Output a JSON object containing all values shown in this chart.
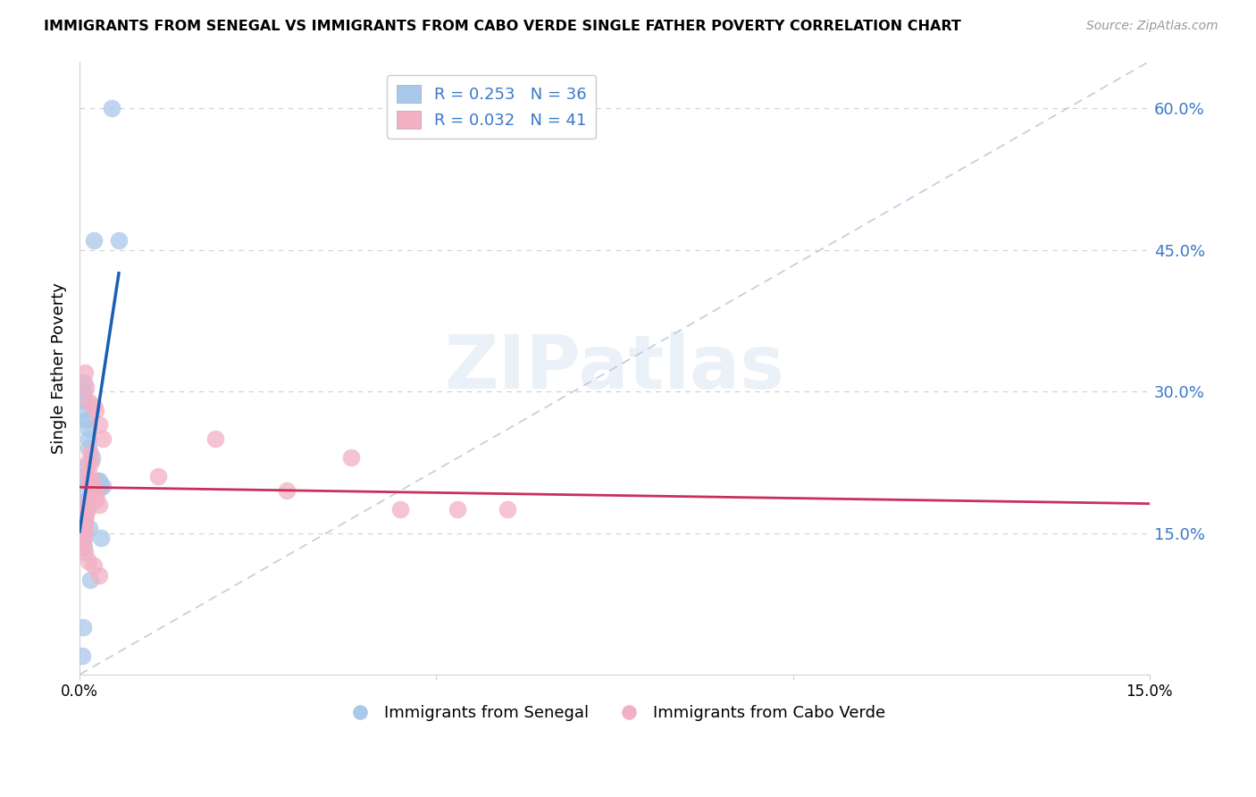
{
  "title": "IMMIGRANTS FROM SENEGAL VS IMMIGRANTS FROM CABO VERDE SINGLE FATHER POVERTY CORRELATION CHART",
  "source": "Source: ZipAtlas.com",
  "ylabel": "Single Father Poverty",
  "right_ytick_labels": [
    "15.0%",
    "30.0%",
    "45.0%",
    "60.0%"
  ],
  "right_ytick_vals": [
    0.15,
    0.3,
    0.45,
    0.6
  ],
  "xlim": [
    0.0,
    0.15
  ],
  "ylim": [
    0.0,
    0.65
  ],
  "legend_blue_R": "0.253",
  "legend_blue_N": "36",
  "legend_pink_R": "0.032",
  "legend_pink_N": "41",
  "blue_color": "#aac8ea",
  "pink_color": "#f2b0c4",
  "blue_line_color": "#1a5fb4",
  "pink_line_color": "#c8305a",
  "watermark_text": "ZIPatlas",
  "senegal_x": [
    0.0045,
    0.002,
    0.0055,
    0.0006,
    0.0006,
    0.0007,
    0.0008,
    0.0009,
    0.001,
    0.0012,
    0.0012,
    0.0013,
    0.0018,
    0.0006,
    0.0007,
    0.0009,
    0.001,
    0.0013,
    0.0025,
    0.0028,
    0.003,
    0.0032,
    0.0022,
    0.0009,
    0.001,
    0.0007,
    0.0008,
    0.0006,
    0.0007,
    0.0014,
    0.003,
    0.0006,
    0.0006,
    0.0015,
    0.0005,
    0.0004
  ],
  "senegal_y": [
    0.6,
    0.46,
    0.46,
    0.31,
    0.3,
    0.29,
    0.28,
    0.27,
    0.27,
    0.26,
    0.25,
    0.24,
    0.23,
    0.22,
    0.21,
    0.21,
    0.205,
    0.205,
    0.205,
    0.205,
    0.2,
    0.2,
    0.195,
    0.195,
    0.185,
    0.18,
    0.175,
    0.17,
    0.165,
    0.155,
    0.145,
    0.145,
    0.135,
    0.1,
    0.05,
    0.02
  ],
  "caboverde_x": [
    0.0008,
    0.0009,
    0.0012,
    0.002,
    0.0023,
    0.0028,
    0.0032,
    0.0015,
    0.0016,
    0.0012,
    0.0013,
    0.0011,
    0.0014,
    0.0017,
    0.0018,
    0.002,
    0.0024,
    0.0023,
    0.0028,
    0.0008,
    0.0009,
    0.0011,
    0.0009,
    0.0008,
    0.0007,
    0.0008,
    0.0005,
    0.0006,
    0.0006,
    0.0005,
    0.0008,
    0.0012,
    0.002,
    0.0028,
    0.038,
    0.045,
    0.053,
    0.029,
    0.019,
    0.011,
    0.06
  ],
  "caboverde_y": [
    0.32,
    0.305,
    0.29,
    0.285,
    0.28,
    0.265,
    0.25,
    0.235,
    0.225,
    0.225,
    0.215,
    0.21,
    0.205,
    0.205,
    0.195,
    0.195,
    0.19,
    0.185,
    0.18,
    0.18,
    0.175,
    0.175,
    0.17,
    0.165,
    0.16,
    0.155,
    0.155,
    0.15,
    0.145,
    0.135,
    0.13,
    0.12,
    0.115,
    0.105,
    0.23,
    0.175,
    0.175,
    0.195,
    0.25,
    0.21,
    0.175
  ]
}
